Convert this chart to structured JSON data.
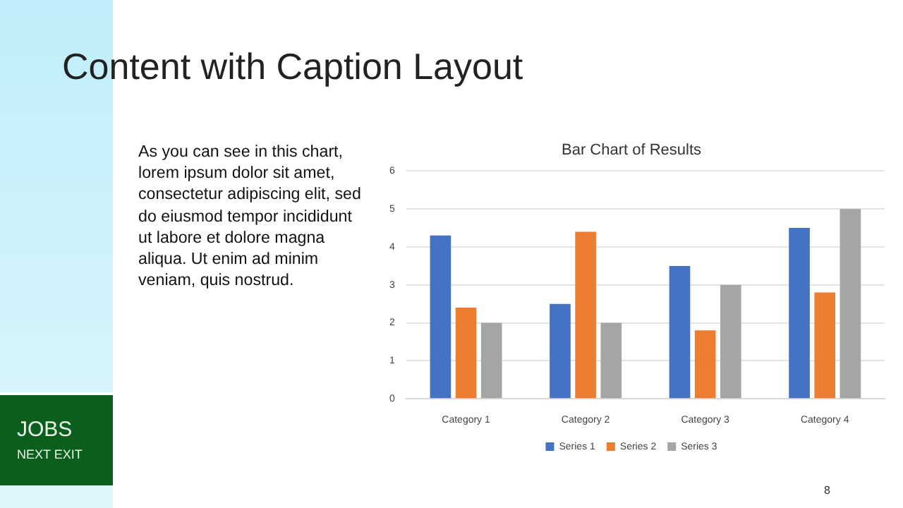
{
  "chart_data": {
    "type": "bar",
    "title": "Bar Chart of Results",
    "annotations": [
      "Content with Caption Layout",
      "As you can see in this chart, lorem ipsum dolor sit amet, consectetur adipiscing elit, sed do eiusmod tempor incididunt ut labore et dolore magna aliqua. Ut enim ad minim veniam, quis nostrud.",
      "JOBS",
      "NEXT EXIT",
      "8"
    ],
    "categories": [
      "Category 1",
      "Category 2",
      "Category 3",
      "Category 4"
    ],
    "series": [
      {
        "name": "Series 1",
        "color": "#4472c4",
        "values": [
          4.3,
          2.5,
          3.5,
          4.5
        ]
      },
      {
        "name": "Series 2",
        "color": "#ed7d31",
        "values": [
          2.4,
          4.4,
          1.8,
          2.8
        ]
      },
      {
        "name": "Series 3",
        "color": "#a5a5a5",
        "values": [
          2,
          2,
          3,
          5
        ]
      }
    ],
    "ylim": [
      0,
      6
    ],
    "yticks": [
      0,
      1,
      2,
      3,
      4,
      5,
      6
    ],
    "grid": "y",
    "legend": "bottom"
  }
}
